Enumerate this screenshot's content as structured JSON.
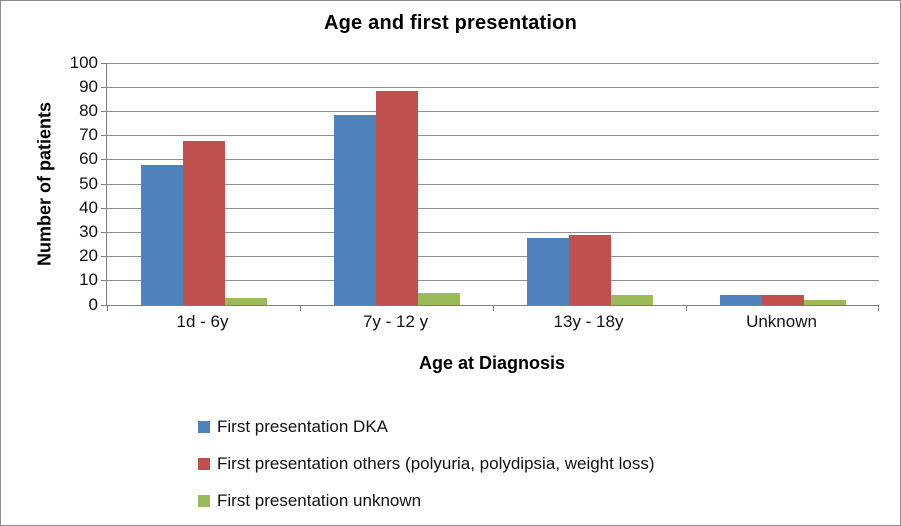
{
  "chart_data": {
    "type": "bar",
    "title": "Age and first presentation",
    "xlabel": "Age at Diagnosis",
    "ylabel": "Number of patients",
    "categories": [
      "1d - 6y",
      "7y - 12 y",
      "13y - 18y",
      "Unknown"
    ],
    "series": [
      {
        "name": "First presentation DKA",
        "color": "#4F81BD",
        "values": [
          58,
          79,
          28,
          4
        ]
      },
      {
        "name": "First presentation others (polyuria, polydipsia, weight loss)",
        "color": "#C0504D",
        "values": [
          68,
          89,
          29,
          4
        ]
      },
      {
        "name": "First presentation unknown",
        "color": "#9BBB59",
        "values": [
          3,
          5,
          4,
          2
        ]
      }
    ],
    "ylim": [
      0,
      100
    ],
    "yticks": [
      0,
      10,
      20,
      30,
      40,
      50,
      60,
      70,
      80,
      90,
      100
    ],
    "grid": true,
    "legend_position": "bottom-left",
    "colors": {
      "gridline": "#8f8f8f",
      "axis": "#7f7f7f",
      "frame_border": "#8c8c8c"
    }
  }
}
